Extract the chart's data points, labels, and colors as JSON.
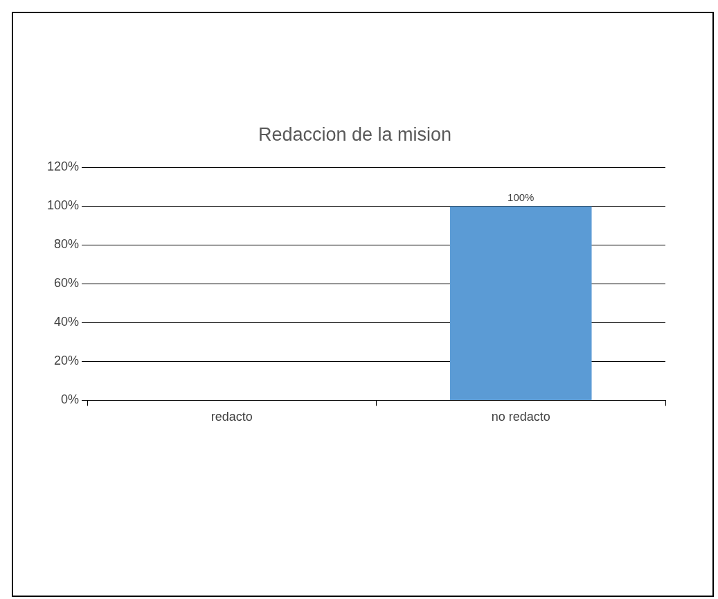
{
  "chart_data": {
    "type": "bar",
    "title": "Redaccion de la mision",
    "categories": [
      "redacto",
      "no redacto"
    ],
    "values": [
      0,
      100
    ],
    "color": "#5b9bd5",
    "ylim": [
      0,
      120
    ],
    "yticks": [
      {
        "value": 0,
        "label": "0%"
      },
      {
        "value": 20,
        "label": "20%"
      },
      {
        "value": 40,
        "label": "40%"
      },
      {
        "value": 60,
        "label": "60%"
      },
      {
        "value": 80,
        "label": "80%"
      },
      {
        "value": 100,
        "label": "100%"
      },
      {
        "value": 120,
        "label": "120%"
      }
    ],
    "grid": "y",
    "value_labels": [
      null,
      "100%"
    ]
  }
}
